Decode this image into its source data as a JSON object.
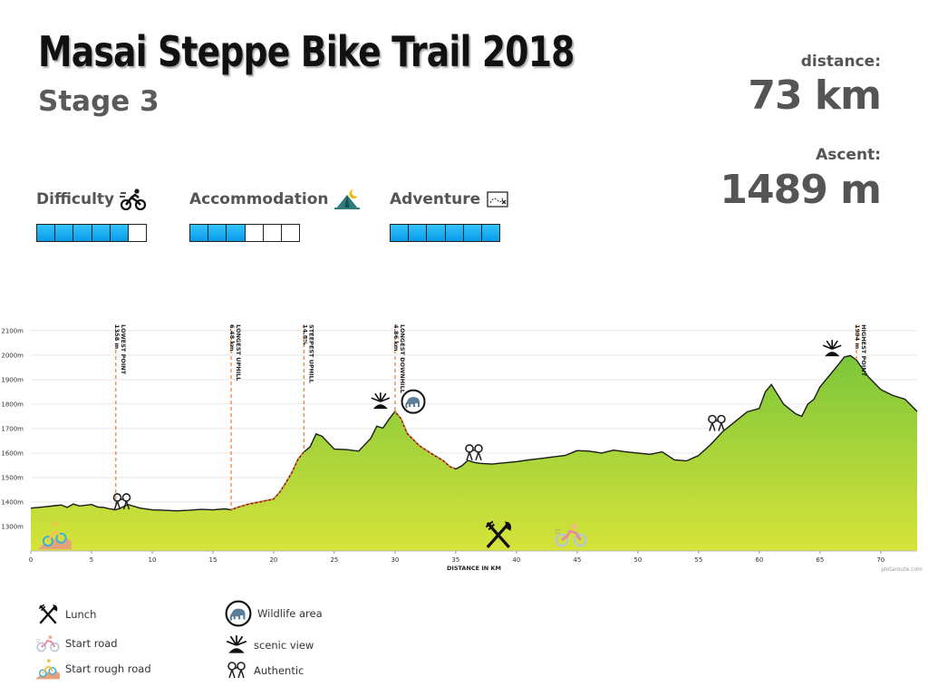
{
  "header": {
    "title": "Masai Steppe Bike Trail 2018",
    "stage": "Stage 3"
  },
  "stats": {
    "distance_label": "distance:",
    "distance_value": "73 km",
    "ascent_label": "Ascent:",
    "ascent_value": "1489 m"
  },
  "ratings": [
    {
      "label": "Difficulty",
      "icon": "cyclist-icon",
      "level": 5,
      "max": 6
    },
    {
      "label": "Accommodation",
      "icon": "tent-icon",
      "level": 3,
      "max": 6
    },
    {
      "label": "Adventure",
      "icon": "treasure-map-icon",
      "level": 6,
      "max": 6
    }
  ],
  "chart_data": {
    "type": "area",
    "xlabel": "DISTANCE IN KM",
    "xlim": [
      0,
      73
    ],
    "ylim": [
      1200,
      2140
    ],
    "x_ticks": [
      0,
      5,
      10,
      15,
      20,
      25,
      30,
      35,
      40,
      45,
      50,
      55,
      60,
      65,
      70
    ],
    "y_ticks": [
      1300,
      1400,
      1500,
      1600,
      1700,
      1800,
      1900,
      2000,
      2100
    ],
    "y_tick_labels": [
      "1300m",
      "1400m",
      "1500m",
      "1600m",
      "1700m",
      "1800m",
      "1900m",
      "2000m",
      "2100m"
    ],
    "series": [
      {
        "x": [
          0,
          1,
          2,
          2.5,
          3,
          3.5,
          4,
          5,
          5.5,
          6,
          6.5,
          7,
          7.5,
          8,
          9,
          10,
          11,
          12,
          13,
          14,
          15,
          16,
          16.5,
          17,
          18,
          19,
          20,
          20.5,
          21,
          21.5,
          22,
          22.5,
          23,
          23.5,
          24,
          25,
          26,
          27,
          28,
          28.5,
          29,
          29.5,
          30,
          30.5,
          31,
          32,
          33,
          34,
          34.5,
          35,
          35.5,
          36,
          36.5,
          37,
          38,
          39,
          40,
          41,
          42,
          43,
          44,
          45,
          46,
          47,
          48,
          49,
          50,
          51,
          52,
          53,
          54,
          55,
          56,
          57,
          58,
          59,
          60,
          60.5,
          61,
          62,
          63,
          63.5,
          64,
          64.5,
          65,
          66,
          66.5,
          67,
          67.5,
          68,
          69,
          70,
          71,
          72,
          73
        ],
        "y": [
          1375,
          1380,
          1385,
          1388,
          1378,
          1392,
          1384,
          1390,
          1380,
          1378,
          1372,
          1368,
          1378,
          1390,
          1375,
          1368,
          1366,
          1364,
          1366,
          1370,
          1368,
          1372,
          1368,
          1378,
          1392,
          1402,
          1412,
          1440,
          1478,
          1520,
          1574,
          1605,
          1625,
          1678,
          1668,
          1616,
          1614,
          1608,
          1660,
          1710,
          1702,
          1738,
          1770,
          1740,
          1680,
          1630,
          1598,
          1568,
          1545,
          1535,
          1548,
          1570,
          1562,
          1558,
          1555,
          1560,
          1565,
          1572,
          1578,
          1584,
          1590,
          1610,
          1608,
          1600,
          1612,
          1605,
          1600,
          1595,
          1605,
          1572,
          1568,
          1590,
          1635,
          1688,
          1728,
          1768,
          1782,
          1850,
          1880,
          1800,
          1760,
          1750,
          1800,
          1820,
          1870,
          1930,
          1960,
          1992,
          1998,
          1980,
          1910,
          1860,
          1835,
          1820,
          1770
        ],
        "fill_top": "#7cc63a",
        "fill_bottom": "#d6e33a"
      }
    ],
    "markers": [
      {
        "x": 7,
        "lines": [
          "LOWEST POINT",
          "1358 m"
        ]
      },
      {
        "x": 16.5,
        "lines": [
          "LONGEST UPHILL",
          "6.48 km"
        ]
      },
      {
        "x": 22.5,
        "lines": [
          "STEEPEST UPHILL",
          "14.8%"
        ]
      },
      {
        "x": 30,
        "lines": [
          "LONGEST DOWNHILL",
          "4.86 km"
        ]
      },
      {
        "x": 68,
        "lines": [
          "HIGHEST POINT",
          "1994 m"
        ]
      }
    ],
    "dashed_segments": [
      [
        16.5,
        22.5
      ],
      [
        30,
        35
      ]
    ],
    "annotations": [
      {
        "icon": "authentic-icon",
        "x": 7.5,
        "elev": 1400
      },
      {
        "icon": "scenic-view-icon",
        "x": 28.8,
        "elev": 1810
      },
      {
        "icon": "wildlife-area-icon",
        "x": 31.5,
        "elev": 1810
      },
      {
        "icon": "authentic-icon",
        "x": 36.5,
        "elev": 1600
      },
      {
        "icon": "authentic-icon",
        "x": 56.5,
        "elev": 1720
      },
      {
        "icon": "scenic-view-icon",
        "x": 66,
        "elev": 2025
      },
      {
        "icon": "start-rough-road-icon",
        "x": 2,
        "elev": 1265
      },
      {
        "icon": "lunch-icon",
        "x": 38.5,
        "elev": 1265
      },
      {
        "icon": "start-road-icon",
        "x": 44.5,
        "elev": 1265
      }
    ],
    "credit": "plotaroute.com"
  },
  "legend": [
    {
      "icon": "lunch-icon",
      "label": "Lunch"
    },
    {
      "icon": "start-road-icon",
      "label": "Start road"
    },
    {
      "icon": "start-rough-road-icon",
      "label": "Start rough road"
    },
    {
      "icon": "wildlife-area-icon",
      "label": "Wildlife area"
    },
    {
      "icon": "scenic-view-icon",
      "label": "scenic view"
    },
    {
      "icon": "authentic-icon",
      "label": "Authentic"
    }
  ]
}
